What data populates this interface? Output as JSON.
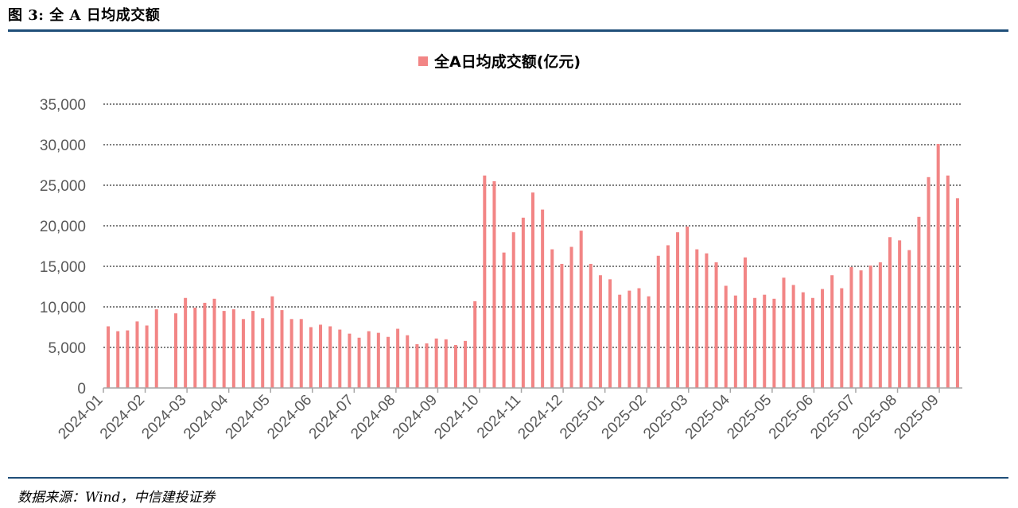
{
  "figure": {
    "title": "图 3: 全 A 日均成交额",
    "source": "数据来源：Wind，中信建投证券"
  },
  "colors": {
    "bar": "#f28585",
    "rule": "#1f4e79",
    "axis": "#a6a6a6",
    "grid": "#000000"
  },
  "chart_data": {
    "type": "bar",
    "title": "",
    "xlabel": "",
    "ylabel": "",
    "ylim": [
      0,
      35000
    ],
    "yticks": [
      "0",
      "5,000",
      "10,000",
      "15,000",
      "20,000",
      "25,000",
      "30,000",
      "35,000"
    ],
    "grid": "horizontal dotted",
    "legend_position": "top-center",
    "x_tick_labels": [
      "2024-01",
      "2024-02",
      "2024-03",
      "2024-04",
      "2024-05",
      "2024-06",
      "2024-07",
      "2024-08",
      "2024-09",
      "2024-10",
      "2024-11",
      "2024-12",
      "2025-01",
      "2025-02",
      "2025-03",
      "2025-04",
      "2025-05",
      "2025-06",
      "2025-07",
      "2025-08",
      "2025-09"
    ],
    "series": [
      {
        "name": "全A日均成交额(亿元)",
        "values": [
          7600,
          7000,
          7100,
          8200,
          7700,
          9700,
          null,
          9200,
          11100,
          9900,
          10500,
          11000,
          9500,
          9700,
          8500,
          9500,
          8600,
          11300,
          9600,
          8500,
          8500,
          7500,
          7800,
          7600,
          7200,
          6700,
          6200,
          7000,
          6800,
          6300,
          7300,
          6500,
          5400,
          5500,
          6100,
          6000,
          5300,
          5800,
          10700,
          26200,
          25500,
          16700,
          19200,
          21000,
          24100,
          22000,
          17100,
          15300,
          17400,
          19400,
          15300,
          13900,
          13400,
          11500,
          12000,
          12300,
          11300,
          16300,
          17600,
          19200,
          19900,
          17100,
          16600,
          15500,
          12600,
          11400,
          16100,
          11100,
          11500,
          11000,
          13600,
          12700,
          11800,
          11100,
          12200,
          13900,
          12300,
          14900,
          14500,
          15100,
          15500,
          18600,
          18200,
          17000,
          21100,
          26000,
          30100,
          26200,
          23400
        ]
      }
    ]
  }
}
